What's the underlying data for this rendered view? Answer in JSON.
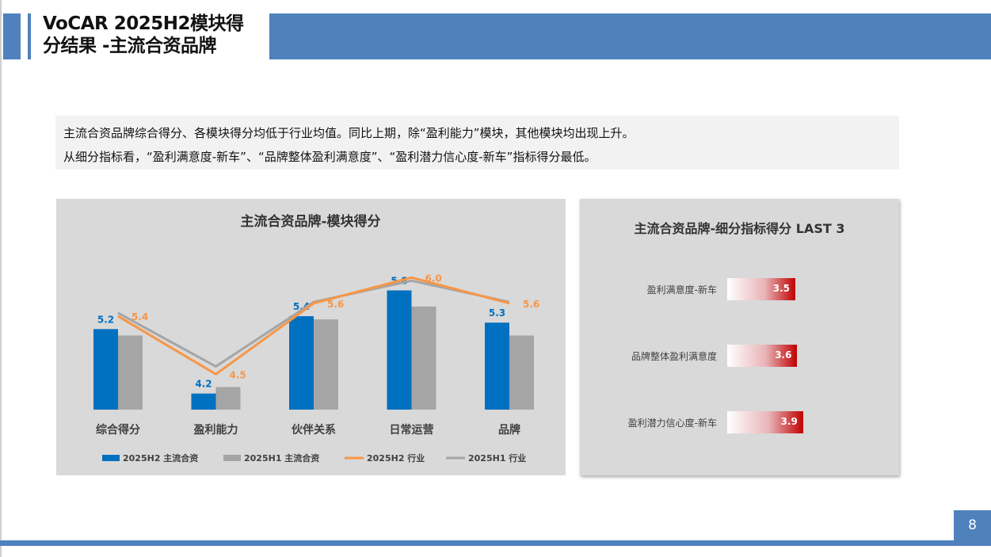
{
  "slide": {
    "title": "VoCAR 2025H2模块得\n分结果 -主流合资品牌",
    "summary": [
      "主流合资品牌综合得分、各模块得分均低于行业均值。同比上期，除“盈利能力”模块，其他模块均出现上升。",
      "从细分指标看，“盈利满意度-新车”、“品牌整体盈利满意度”、“盈利潜力信心度-新车”指标得分最低。"
    ],
    "page_number": "8",
    "colors": {
      "accent": "#4f81bd",
      "h2_brand": "#0070c0",
      "h1_brand": "#a5a5a5",
      "h2_industry": "#f79646",
      "h1_industry": "#a5a5a5",
      "metric_bar": "#c00000"
    }
  },
  "chart_data": [
    {
      "type": "bar",
      "title": "主流合资品牌-模块得分",
      "categories": [
        "综合得分",
        "盈利能力",
        "伙伴关系",
        "日常运营",
        "品牌"
      ],
      "series": [
        {
          "name": "2025H2 主流合资",
          "kind": "bar",
          "values": [
            5.2,
            4.2,
            5.4,
            5.8,
            5.3
          ]
        },
        {
          "name": "2025H1 主流合资",
          "kind": "bar",
          "values": [
            5.1,
            4.3,
            5.35,
            5.55,
            5.1
          ]
        },
        {
          "name": "2025H2 行业",
          "kind": "line",
          "values": [
            5.4,
            4.5,
            5.6,
            6.0,
            5.6
          ]
        },
        {
          "name": "2025H1 行业",
          "kind": "line",
          "values": [
            5.45,
            4.62,
            5.62,
            5.95,
            5.62
          ]
        }
      ],
      "labeled": {
        "2025H2 主流合资": [
          "5.2",
          "4.2",
          "5.4",
          "5.8",
          "5.3"
        ],
        "2025H2 行业": [
          "5.4",
          "4.5",
          "5.6",
          "6.0",
          "5.6"
        ]
      },
      "ylim": [
        3.95,
        6.2
      ],
      "legend": "bottom",
      "grid": false
    },
    {
      "type": "bar",
      "title": "主流合资品牌-细分指标得分 LAST 3",
      "orientation": "horizontal",
      "categories": [
        "盈利满意度-新车",
        "品牌整体盈利满意度",
        "盈利潜力信心度-新车"
      ],
      "values": [
        3.5,
        3.6,
        3.9
      ],
      "value_labels": [
        "3.5",
        "3.6",
        "3.9"
      ]
    }
  ]
}
